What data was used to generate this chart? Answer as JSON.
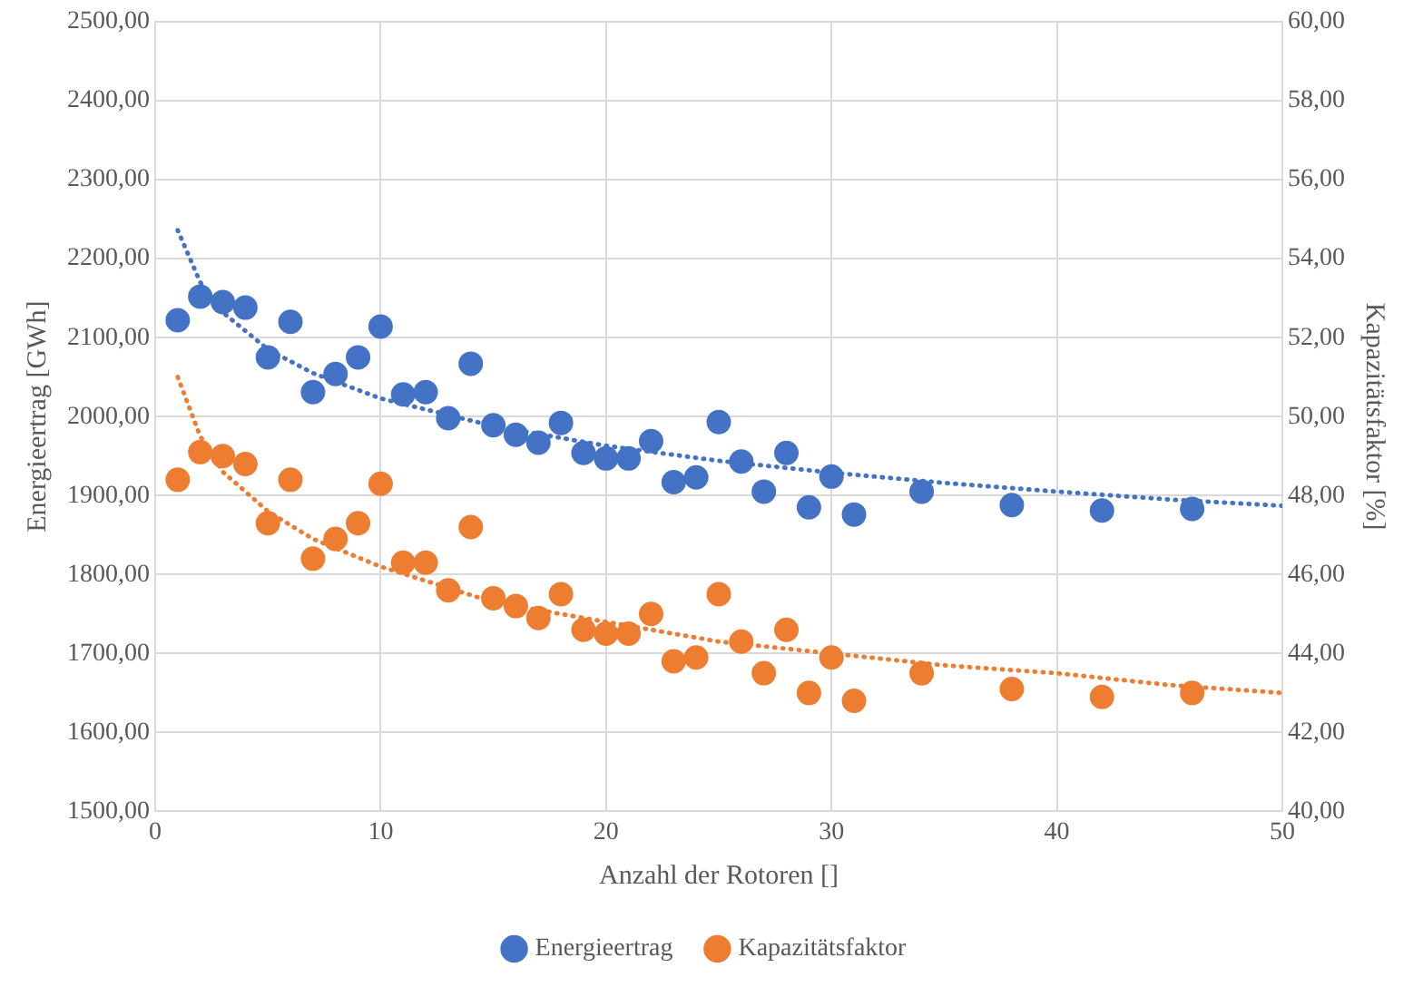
{
  "chart_data": {
    "type": "scatter",
    "xlabel": "Anzahl der Rotoren []",
    "ylabel": "Energieertrag [GWh]",
    "y2label": "Kapazitätsfaktor [%]",
    "x": [
      1,
      2,
      3,
      4,
      5,
      6,
      7,
      8,
      9,
      10,
      11,
      12,
      13,
      14,
      15,
      16,
      17,
      18,
      19,
      20,
      21,
      22,
      23,
      24,
      25,
      26,
      27,
      28,
      29,
      30,
      31,
      34,
      38,
      42,
      46
    ],
    "series": [
      {
        "name": "Energieertrag",
        "color": "#4472c4",
        "values": [
          2122,
          2152,
          2145,
          2138,
          2075,
          2120,
          2031,
          2054,
          2075,
          2114,
          2028,
          2031,
          1998,
          2067,
          1989,
          1977,
          1967,
          1992,
          1954,
          1947,
          1947,
          1969,
          1917,
          1923,
          1993,
          1943,
          1905,
          1954,
          1885,
          1924,
          1876,
          1905,
          1888,
          1881,
          1883
        ]
      },
      {
        "name": "Kapazitätsfaktor",
        "color": "#ed7d31",
        "axis": "y2",
        "values": [
          48.4,
          49.1,
          49.0,
          48.8,
          47.3,
          48.4,
          46.4,
          46.9,
          47.3,
          48.3,
          46.3,
          46.3,
          45.6,
          47.2,
          45.4,
          45.2,
          44.9,
          45.5,
          44.6,
          44.5,
          44.5,
          45.0,
          43.8,
          43.9,
          45.5,
          44.3,
          43.5,
          44.6,
          43.0,
          43.9,
          42.8,
          43.5,
          43.1,
          42.9,
          43.0
        ]
      },
      {
        "type": "line",
        "color": "#4472c4",
        "marker": "none",
        "line_style": "dotted",
        "x": [
          1,
          2,
          3,
          5,
          7,
          10,
          15,
          20,
          25,
          30,
          35,
          40,
          45,
          50
        ],
        "values": [
          2236,
          2170,
          2132,
          2085,
          2055,
          2023,
          1988,
          1963,
          1944,
          1929,
          1916,
          1905,
          1895,
          1887
        ]
      },
      {
        "type": "line",
        "color": "#ed7d31",
        "marker": "none",
        "line_style": "dotted",
        "axis": "y2",
        "x": [
          1,
          2,
          3,
          5,
          7,
          10,
          15,
          20,
          25,
          30,
          35,
          40,
          45,
          50
        ],
        "values": [
          51.0,
          49.5,
          48.6,
          47.6,
          46.9,
          46.2,
          45.3,
          44.8,
          44.3,
          44.0,
          43.7,
          43.5,
          43.2,
          43.0
        ]
      }
    ],
    "xlim": [
      0,
      50
    ],
    "xticks": [
      0,
      10,
      20,
      30,
      40,
      50
    ],
    "ylim": [
      1500,
      2500
    ],
    "yticks": [
      {
        "value": 1500,
        "label": "1500,00"
      },
      {
        "value": 1600,
        "label": "1600,00"
      },
      {
        "value": 1700,
        "label": "1700,00"
      },
      {
        "value": 1800,
        "label": "1800,00"
      },
      {
        "value": 1900,
        "label": "1900,00"
      },
      {
        "value": 2000,
        "label": "2000,00"
      },
      {
        "value": 2100,
        "label": "2100,00"
      },
      {
        "value": 2200,
        "label": "2200,00"
      },
      {
        "value": 2300,
        "label": "2300,00"
      },
      {
        "value": 2400,
        "label": "2400,00"
      },
      {
        "value": 2500,
        "label": "2500,00"
      }
    ],
    "y2lim": [
      40,
      60
    ],
    "y2ticks": [
      {
        "value": 40,
        "label": "40,00"
      },
      {
        "value": 42,
        "label": "42,00"
      },
      {
        "value": 44,
        "label": "44,00"
      },
      {
        "value": 46,
        "label": "46,00"
      },
      {
        "value": 48,
        "label": "48,00"
      },
      {
        "value": 50,
        "label": "50,00"
      },
      {
        "value": 52,
        "label": "52,00"
      },
      {
        "value": 54,
        "label": "54,00"
      },
      {
        "value": 56,
        "label": "56,00"
      },
      {
        "value": 58,
        "label": "58,00"
      },
      {
        "value": 60,
        "label": "60,00"
      }
    ],
    "grid": true,
    "legend": "bottom",
    "marker": "circle"
  }
}
